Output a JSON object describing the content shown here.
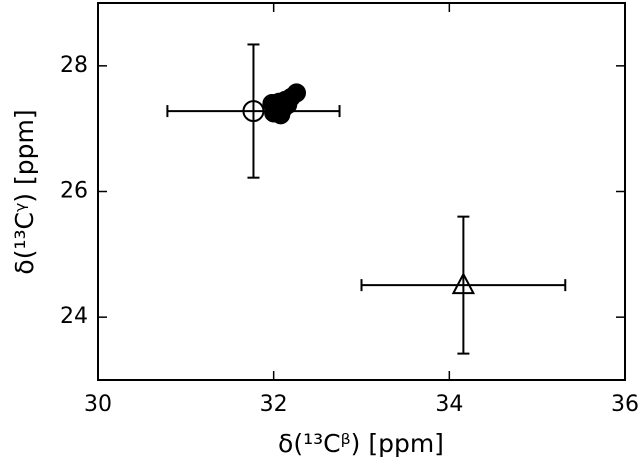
{
  "chart_data": {
    "type": "scatter",
    "xlabel": "δ(¹³Cᵝ) [ppm]",
    "ylabel": "δ(¹³Cᵞ) [ppm]",
    "xlim": [
      30,
      36
    ],
    "xticks": [
      30,
      32,
      34,
      36
    ],
    "ylim": [
      23,
      29
    ],
    "yticks": [
      24,
      26,
      28
    ],
    "series": [
      {
        "marker": "open-circle",
        "color": "#000000",
        "x": [
          31.77
        ],
        "values": [
          27.28
        ],
        "xerr": [
          0.98
        ],
        "yerr": [
          1.06
        ]
      },
      {
        "marker": "filled-circle",
        "color": "#000000",
        "x": [
          32.0,
          32.03,
          32.06,
          32.1,
          32.13,
          32.16,
          32.2,
          32.26,
          31.98,
          32.08
        ],
        "values": [
          27.25,
          27.35,
          27.42,
          27.3,
          27.45,
          27.38,
          27.5,
          27.57,
          27.4,
          27.22
        ]
      },
      {
        "marker": "open-triangle",
        "color": "#000000",
        "x": [
          34.16
        ],
        "values": [
          24.51
        ],
        "xerr": [
          1.16
        ],
        "yerr": [
          1.09
        ]
      }
    ]
  }
}
